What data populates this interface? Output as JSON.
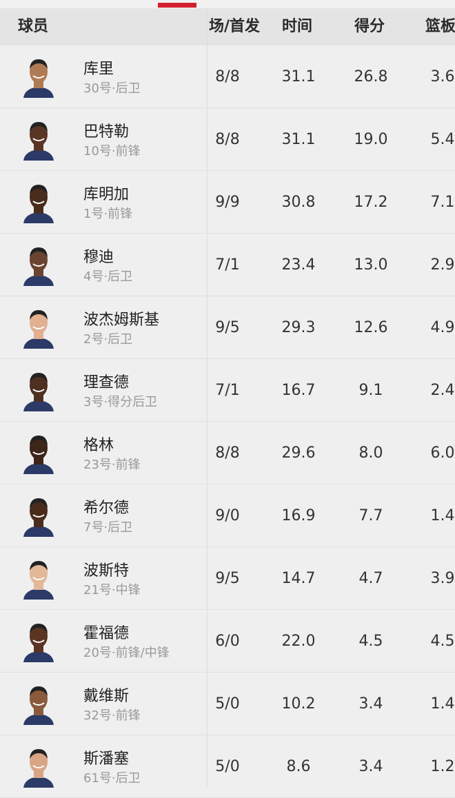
{
  "header": {
    "player": "球员",
    "games": "场/首发",
    "minutes": "时间",
    "points": "得分",
    "rebounds": "篮板"
  },
  "accent_color": "#d2202e",
  "players": [
    {
      "name": "库里",
      "info": "30号·后卫",
      "games": "8/8",
      "minutes": "31.1",
      "points": "26.8",
      "rebounds": "3.6",
      "skin": "#b07a55"
    },
    {
      "name": "巴特勒",
      "info": "10号·前锋",
      "games": "8/8",
      "minutes": "31.1",
      "points": "19.0",
      "rebounds": "5.4",
      "skin": "#5a3524"
    },
    {
      "name": "库明加",
      "info": "1号·前锋",
      "games": "9/9",
      "minutes": "30.8",
      "points": "17.2",
      "rebounds": "7.1",
      "skin": "#4a2c1c"
    },
    {
      "name": "穆迪",
      "info": "4号·后卫",
      "games": "7/1",
      "minutes": "23.4",
      "points": "13.0",
      "rebounds": "2.9",
      "skin": "#6a4430"
    },
    {
      "name": "波杰姆斯基",
      "info": "2号·后卫",
      "games": "9/5",
      "minutes": "29.3",
      "points": "12.6",
      "rebounds": "4.9",
      "skin": "#e0b090"
    },
    {
      "name": "理查德",
      "info": "3号·得分后卫",
      "games": "7/1",
      "minutes": "16.7",
      "points": "9.1",
      "rebounds": "2.4",
      "skin": "#4e2f20"
    },
    {
      "name": "格林",
      "info": "23号·前锋",
      "games": "8/8",
      "minutes": "29.6",
      "points": "8.0",
      "rebounds": "6.0",
      "skin": "#3e2519"
    },
    {
      "name": "希尔德",
      "info": "7号·后卫",
      "games": "9/0",
      "minutes": "16.9",
      "points": "7.7",
      "rebounds": "1.4",
      "skin": "#4a2c1c"
    },
    {
      "name": "波斯特",
      "info": "21号·中锋",
      "games": "9/5",
      "minutes": "14.7",
      "points": "4.7",
      "rebounds": "3.9",
      "skin": "#e2b899"
    },
    {
      "name": "霍福德",
      "info": "20号·前锋/中锋",
      "games": "6/0",
      "minutes": "22.0",
      "points": "4.5",
      "rebounds": "4.5",
      "skin": "#5a3524"
    },
    {
      "name": "戴维斯",
      "info": "32号·前锋",
      "games": "5/0",
      "minutes": "10.2",
      "points": "3.4",
      "rebounds": "1.4",
      "skin": "#8a5a3c"
    },
    {
      "name": "斯潘塞",
      "info": "61号·后卫",
      "games": "5/0",
      "minutes": "8.6",
      "points": "3.4",
      "rebounds": "1.2",
      "skin": "#d9a585"
    }
  ]
}
